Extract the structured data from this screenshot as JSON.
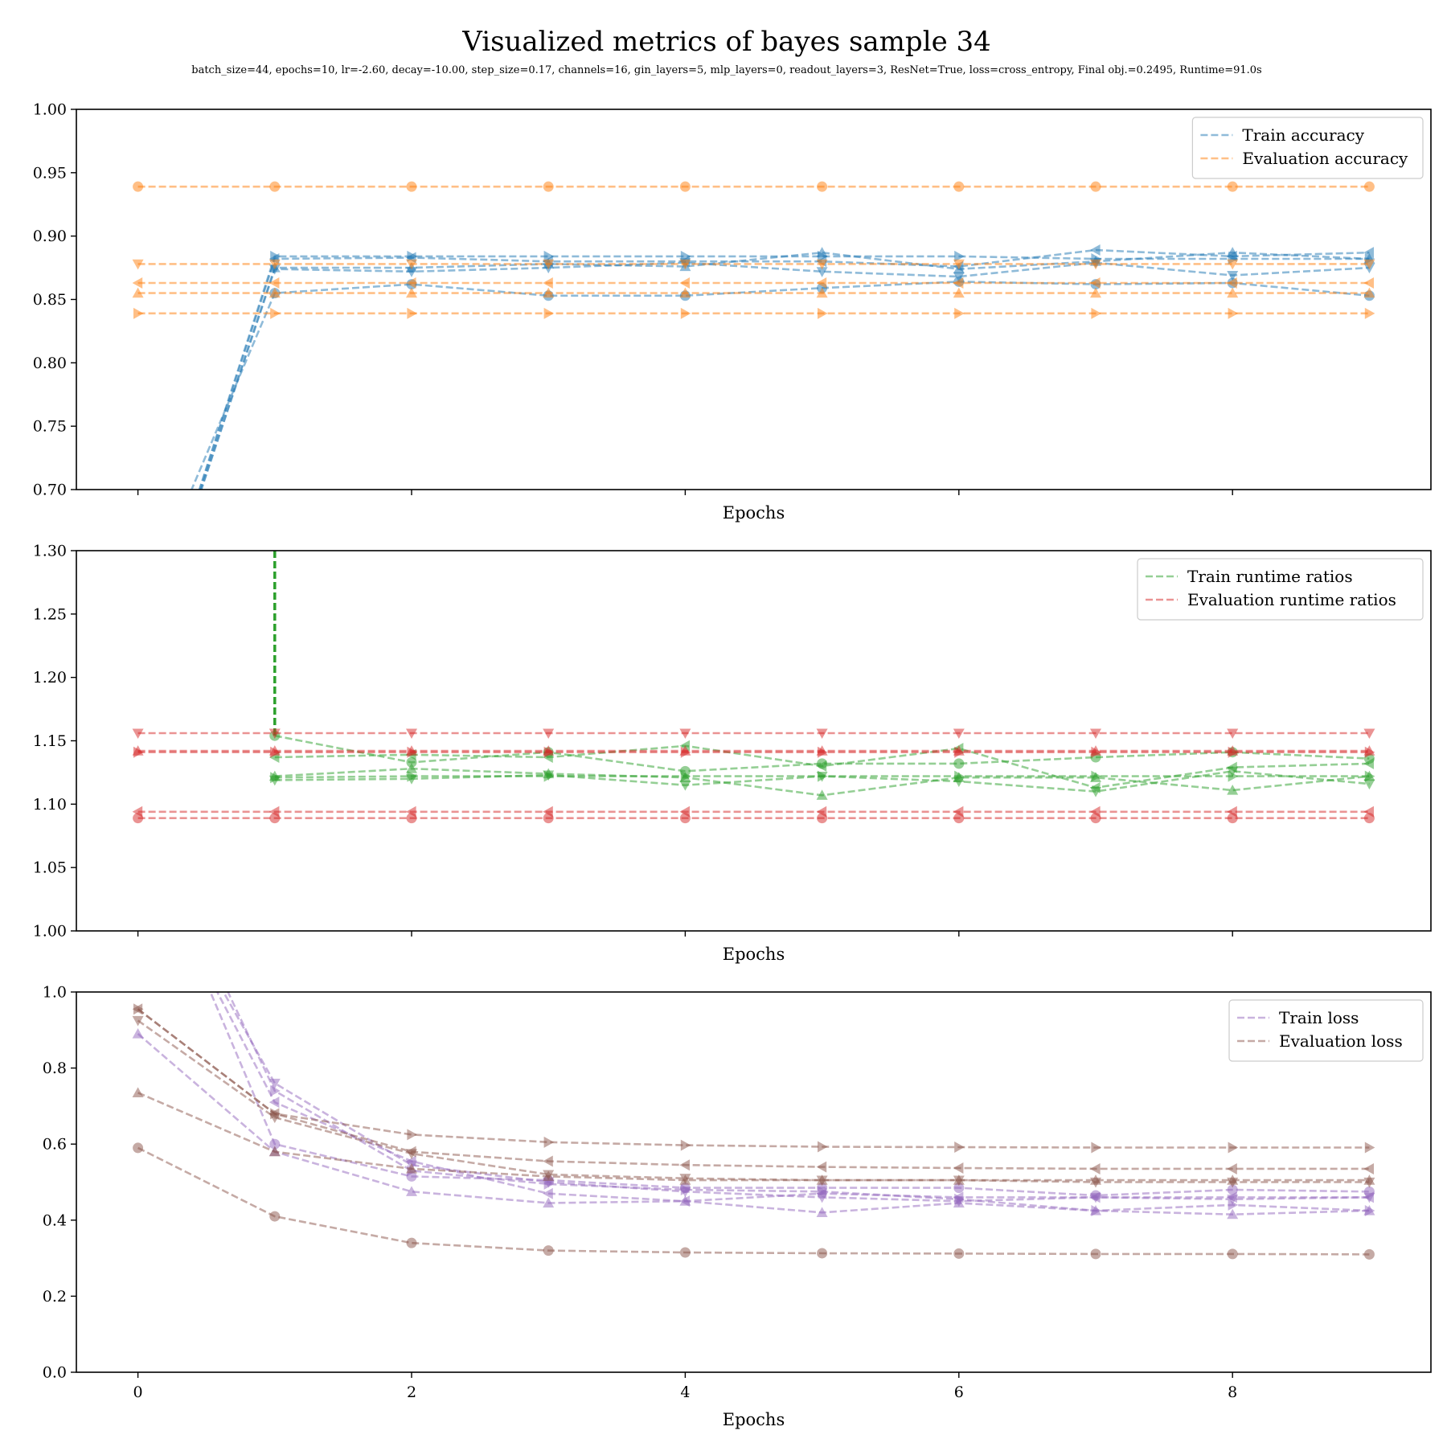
{
  "figure": {
    "title": "Visualized metrics of bayes sample 34",
    "subtitle": "batch_size=44, epochs=10, lr=-2.60, decay=-10.00, step_size=0.17, channels=16, gin_layers=5, mlp_layers=0, readout_layers=3, ResNet=True, loss=cross_entropy, Final obj.=0.2495, Runtime=91.0s"
  },
  "chart_data": [
    {
      "type": "line",
      "xlabel": "Epochs",
      "ylabel": "",
      "xlim": [
        -0.45,
        9.45
      ],
      "ylim": [
        0.7,
        1.0
      ],
      "x_ticks": [
        0,
        2,
        4,
        6,
        8
      ],
      "x_tick_labels": [
        "",
        "",
        "",
        "",
        ""
      ],
      "y_ticks": [
        0.7,
        0.75,
        0.8,
        0.85,
        0.9,
        0.95,
        1.0
      ],
      "y_tick_labels": [
        "0.70",
        "0.75",
        "0.80",
        "0.85",
        "0.90",
        "0.95",
        "1.00"
      ],
      "legend": {
        "position": "top-right",
        "entries": [
          {
            "label": "Train accuracy",
            "color": "#1f77b4"
          },
          {
            "label": "Evaluation accuracy",
            "color": "#ff7f0e"
          }
        ]
      },
      "grid": false,
      "x": [
        0,
        1,
        2,
        3,
        4,
        5,
        6,
        7,
        8,
        9
      ],
      "series": [
        {
          "group": "train",
          "color": "#1f77b4",
          "marker": "circle",
          "values": [
            0.6,
            0.855,
            0.862,
            0.853,
            0.853,
            0.859,
            0.864,
            0.862,
            0.863,
            0.853
          ]
        },
        {
          "group": "train",
          "color": "#1f77b4",
          "marker": "triangle-up",
          "values": [
            0.55,
            0.875,
            0.875,
            0.878,
            0.876,
            0.887,
            0.874,
            0.88,
            0.887,
            0.882
          ]
        },
        {
          "group": "train",
          "color": "#1f77b4",
          "marker": "triangle-down",
          "values": [
            0.55,
            0.874,
            0.872,
            0.875,
            0.879,
            0.872,
            0.868,
            0.879,
            0.869,
            0.875
          ]
        },
        {
          "group": "train",
          "color": "#1f77b4",
          "marker": "triangle-left",
          "values": [
            0.55,
            0.882,
            0.883,
            0.88,
            0.88,
            0.88,
            0.876,
            0.889,
            0.884,
            0.887
          ]
        },
        {
          "group": "train",
          "color": "#1f77b4",
          "marker": "triangle-right",
          "values": [
            0.55,
            0.884,
            0.884,
            0.884,
            0.884,
            0.884,
            0.884,
            0.882,
            0.882,
            0.882
          ]
        },
        {
          "group": "eval",
          "color": "#ff7f0e",
          "marker": "circle",
          "values": [
            0.939,
            0.939,
            0.939,
            0.939,
            0.939,
            0.939,
            0.939,
            0.939,
            0.939,
            0.939
          ]
        },
        {
          "group": "eval",
          "color": "#ff7f0e",
          "marker": "triangle-down",
          "values": [
            0.878,
            0.878,
            0.878,
            0.878,
            0.878,
            0.878,
            0.878,
            0.878,
            0.878,
            0.878
          ]
        },
        {
          "group": "eval",
          "color": "#ff7f0e",
          "marker": "triangle-left",
          "values": [
            0.863,
            0.863,
            0.863,
            0.863,
            0.863,
            0.863,
            0.863,
            0.863,
            0.863,
            0.863
          ]
        },
        {
          "group": "eval",
          "color": "#ff7f0e",
          "marker": "triangle-up",
          "values": [
            0.855,
            0.855,
            0.855,
            0.855,
            0.855,
            0.855,
            0.855,
            0.855,
            0.855,
            0.855
          ]
        },
        {
          "group": "eval",
          "color": "#ff7f0e",
          "marker": "triangle-right",
          "values": [
            0.839,
            0.839,
            0.839,
            0.839,
            0.839,
            0.839,
            0.839,
            0.839,
            0.839,
            0.839
          ]
        }
      ]
    },
    {
      "type": "line",
      "xlabel": "Epochs",
      "ylabel": "",
      "xlim": [
        -0.45,
        9.45
      ],
      "ylim": [
        1.0,
        1.3
      ],
      "x_ticks": [
        0,
        2,
        4,
        6,
        8
      ],
      "x_tick_labels": [
        "",
        "",
        "",
        "",
        ""
      ],
      "y_ticks": [
        1.0,
        1.05,
        1.1,
        1.15,
        1.2,
        1.25,
        1.3
      ],
      "y_tick_labels": [
        "1.00",
        "1.05",
        "1.10",
        "1.15",
        "1.20",
        "1.25",
        "1.30"
      ],
      "legend": {
        "position": "top-right",
        "entries": [
          {
            "label": "Train runtime ratios",
            "color": "#2ca02c"
          },
          {
            "label": "Evaluation runtime ratios",
            "color": "#d62728"
          }
        ]
      },
      "grid": false,
      "x": [
        0,
        1,
        2,
        3,
        4,
        5,
        6,
        7,
        8,
        9
      ],
      "series": [
        {
          "group": "train",
          "color": "#2ca02c",
          "marker": "circle",
          "values": [
            null,
            1.154,
            1.133,
            1.141,
            1.126,
            1.132,
            1.132,
            1.137,
            1.141,
            1.136
          ]
        },
        {
          "group": "train",
          "color": "#2ca02c",
          "marker": "triangle-left",
          "values": [
            null,
            1.137,
            1.139,
            1.137,
            1.146,
            1.13,
            1.144,
            1.113,
            1.129,
            1.132
          ]
        },
        {
          "group": "train",
          "color": "#2ca02c",
          "marker": "triangle-up",
          "values": [
            null,
            1.122,
            1.128,
            1.124,
            1.121,
            1.107,
            1.121,
            1.121,
            1.111,
            1.122
          ]
        },
        {
          "group": "train",
          "color": "#2ca02c",
          "marker": "triangle-down",
          "values": [
            null,
            1.119,
            1.12,
            1.123,
            1.115,
            1.122,
            1.118,
            1.11,
            1.126,
            1.116
          ]
        },
        {
          "group": "train",
          "color": "#2ca02c",
          "marker": "triangle-right",
          "values": [
            null,
            1.121,
            1.122,
            1.122,
            1.122,
            1.122,
            1.122,
            1.122,
            1.122,
            1.122
          ]
        },
        {
          "group": "train",
          "color": "#2ca02c",
          "marker": "none",
          "values": [
            null,
            1.3,
            null,
            null,
            null,
            null,
            null,
            null,
            null,
            null
          ],
          "note_free": true
        },
        {
          "group": "eval",
          "color": "#d62728",
          "marker": "triangle-down",
          "values": [
            1.156,
            1.156,
            1.156,
            1.156,
            1.156,
            1.156,
            1.156,
            1.156,
            1.156,
            1.156
          ]
        },
        {
          "group": "eval",
          "color": "#d62728",
          "marker": "triangle-up",
          "values": [
            1.142,
            1.142,
            1.142,
            1.142,
            1.142,
            1.142,
            1.142,
            1.142,
            1.142,
            1.142
          ]
        },
        {
          "group": "eval",
          "color": "#d62728",
          "marker": "triangle-right",
          "values": [
            1.141,
            1.141,
            1.141,
            1.141,
            1.141,
            1.141,
            1.141,
            1.141,
            1.141,
            1.141
          ]
        },
        {
          "group": "eval",
          "color": "#d62728",
          "marker": "triangle-left",
          "values": [
            1.094,
            1.094,
            1.094,
            1.094,
            1.094,
            1.094,
            1.094,
            1.094,
            1.094,
            1.094
          ]
        },
        {
          "group": "eval",
          "color": "#d62728",
          "marker": "circle",
          "values": [
            1.089,
            1.089,
            1.089,
            1.089,
            1.089,
            1.089,
            1.089,
            1.089,
            1.089,
            1.089
          ]
        }
      ]
    },
    {
      "type": "line",
      "xlabel": "Epochs",
      "ylabel": "",
      "xlim": [
        -0.45,
        9.45
      ],
      "ylim": [
        0.0,
        1.0
      ],
      "x_ticks": [
        0,
        2,
        4,
        6,
        8
      ],
      "x_tick_labels": [
        "0",
        "2",
        "4",
        "6",
        "8"
      ],
      "y_ticks": [
        0.0,
        0.2,
        0.4,
        0.6,
        0.8,
        1.0
      ],
      "y_tick_labels": [
        "0.0",
        "0.2",
        "0.4",
        "0.6",
        "0.8",
        "1.0"
      ],
      "legend": {
        "position": "top-right",
        "entries": [
          {
            "label": "Train loss",
            "color": "#9467bd"
          },
          {
            "label": "Evaluation loss",
            "color": "#8c564b"
          }
        ]
      },
      "grid": false,
      "x": [
        0,
        1,
        2,
        3,
        4,
        5,
        6,
        7,
        8,
        9
      ],
      "series": [
        {
          "group": "train",
          "color": "#9467bd",
          "marker": "triangle-up",
          "values": [
            0.89,
            0.58,
            0.475,
            0.445,
            0.45,
            0.42,
            0.445,
            0.425,
            0.415,
            0.425
          ]
        },
        {
          "group": "train",
          "color": "#9467bd",
          "marker": "circle",
          "values": [
            1.45,
            0.6,
            0.515,
            0.505,
            0.485,
            0.485,
            0.485,
            0.465,
            0.48,
            0.475
          ]
        },
        {
          "group": "train",
          "color": "#9467bd",
          "marker": "triangle-down",
          "values": [
            1.4,
            0.76,
            0.545,
            0.5,
            0.475,
            0.46,
            0.45,
            0.46,
            0.455,
            0.46
          ]
        },
        {
          "group": "train",
          "color": "#9467bd",
          "marker": "triangle-left",
          "values": [
            1.4,
            0.71,
            0.555,
            0.47,
            0.45,
            0.47,
            0.46,
            0.46,
            0.46,
            0.46
          ]
        },
        {
          "group": "train",
          "color": "#9467bd",
          "marker": "triangle-right",
          "values": [
            1.5,
            0.74,
            0.53,
            0.495,
            0.48,
            0.475,
            0.455,
            0.425,
            0.44,
            0.425
          ]
        },
        {
          "group": "eval",
          "color": "#8c564b",
          "marker": "circle",
          "values": [
            0.59,
            0.41,
            0.34,
            0.32,
            0.315,
            0.313,
            0.312,
            0.311,
            0.311,
            0.31
          ]
        },
        {
          "group": "eval",
          "color": "#8c564b",
          "marker": "triangle-up",
          "values": [
            0.735,
            0.58,
            0.535,
            0.515,
            0.505,
            0.505,
            0.505,
            0.505,
            0.505,
            0.505
          ]
        },
        {
          "group": "eval",
          "color": "#8c564b",
          "marker": "triangle-down",
          "values": [
            0.925,
            0.67,
            0.575,
            0.52,
            0.51,
            0.505,
            0.505,
            0.5,
            0.5,
            0.5
          ]
        },
        {
          "group": "eval",
          "color": "#8c564b",
          "marker": "triangle-left",
          "values": [
            0.955,
            0.68,
            0.58,
            0.555,
            0.545,
            0.54,
            0.537,
            0.535,
            0.535,
            0.535
          ]
        },
        {
          "group": "eval",
          "color": "#8c564b",
          "marker": "triangle-right",
          "values": [
            0.955,
            0.68,
            0.625,
            0.605,
            0.597,
            0.593,
            0.592,
            0.591,
            0.591,
            0.591
          ]
        }
      ]
    }
  ]
}
